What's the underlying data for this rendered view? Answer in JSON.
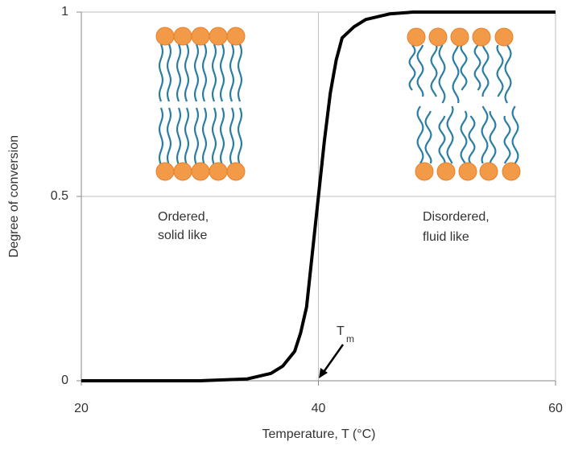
{
  "chart_data": {
    "type": "line",
    "x_label": "Temperature, T (°C)",
    "y_label": "Degree of conversion",
    "x": [
      20,
      30,
      34,
      36,
      37,
      38,
      38.5,
      39,
      39.5,
      40,
      40.5,
      41,
      41.5,
      42,
      43,
      44,
      46,
      48,
      50,
      60
    ],
    "series": [
      {
        "color": "#000000",
        "values": [
          0,
          0,
          0.005,
          0.02,
          0.04,
          0.08,
          0.13,
          0.2,
          0.35,
          0.5,
          0.65,
          0.78,
          0.87,
          0.93,
          0.96,
          0.98,
          0.995,
          1,
          1,
          1
        ]
      }
    ],
    "xlim": [
      20,
      60
    ],
    "xticks": [
      20,
      40,
      60
    ],
    "ylim": [
      0,
      1
    ],
    "yticks": [
      0,
      0.5,
      1
    ],
    "grid": true,
    "annotations": {
      "ordered": [
        "Ordered,",
        "solid like"
      ],
      "disordered": [
        "Disordered,",
        "fluid like"
      ],
      "tm": {
        "text": "T",
        "subscript": "m"
      }
    }
  }
}
